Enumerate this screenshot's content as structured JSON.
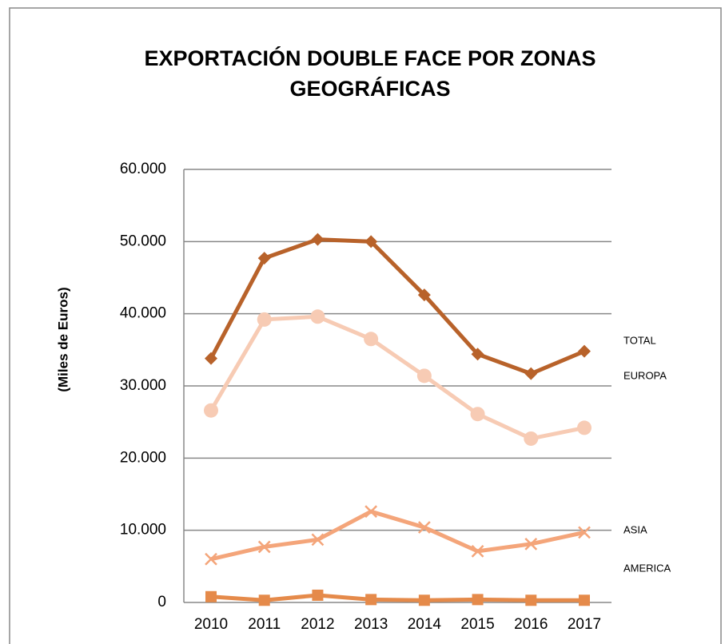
{
  "chart_data": {
    "type": "line",
    "title": [
      "EXPORTACIÓN DOUBLE FACE POR ZONAS",
      "GEOGRÁFICAS"
    ],
    "ylabel": "(Miles de Euros)",
    "categories": [
      "2010",
      "2011",
      "2012",
      "2013",
      "2014",
      "2015",
      "2016",
      "2017"
    ],
    "series": [
      {
        "name": "TOTAL",
        "color": "#b8622a",
        "marker": "diamond",
        "values": [
          33800,
          47700,
          50300,
          50000,
          42600,
          34400,
          31700,
          34800
        ]
      },
      {
        "name": "EUROPA",
        "color": "#f7cbb4",
        "marker": "circle",
        "values": [
          26600,
          39200,
          39600,
          36500,
          31400,
          26100,
          22700,
          24200
        ]
      },
      {
        "name": "ASIA",
        "color": "#f4a57a",
        "marker": "x",
        "values": [
          6000,
          7700,
          8700,
          12600,
          10400,
          7100,
          8100,
          9700
        ]
      },
      {
        "name": "AMERICA",
        "color": "#e58a4a",
        "marker": "square",
        "values": [
          800,
          300,
          1000,
          400,
          300,
          400,
          300,
          300
        ]
      }
    ],
    "ylim": [
      0,
      60000
    ],
    "yticks": [
      0,
      {
        "value": 10000,
        "label": "10.000"
      },
      {
        "value": 20000,
        "label": "20.000"
      },
      {
        "value": 30000,
        "label": "30.000"
      },
      {
        "value": 40000,
        "label": "40.000"
      },
      {
        "value": 50000,
        "label": "50.000"
      },
      {
        "value": 60000,
        "label": "60.000"
      }
    ],
    "grid": true
  }
}
